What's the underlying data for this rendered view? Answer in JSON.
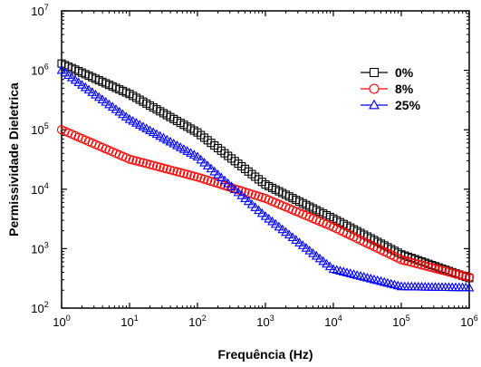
{
  "chart_data": {
    "type": "scatter",
    "xlabel": "Frequência (Hz)",
    "ylabel": "Permissividade Dieletrica",
    "x_scale": "log",
    "y_scale": "log",
    "xlim": [
      1,
      1000000
    ],
    "ylim": [
      100,
      10000000
    ],
    "x_ticks": [
      {
        "base": "10",
        "exp": "0",
        "value": 1
      },
      {
        "base": "10",
        "exp": "1",
        "value": 10
      },
      {
        "base": "10",
        "exp": "2",
        "value": 100
      },
      {
        "base": "10",
        "exp": "3",
        "value": 1000
      },
      {
        "base": "10",
        "exp": "4",
        "value": 10000
      },
      {
        "base": "10",
        "exp": "5",
        "value": 100000
      },
      {
        "base": "10",
        "exp": "6",
        "value": 1000000
      }
    ],
    "y_ticks": [
      {
        "base": "10",
        "exp": "2",
        "value": 100
      },
      {
        "base": "10",
        "exp": "3",
        "value": 1000
      },
      {
        "base": "10",
        "exp": "4",
        "value": 10000
      },
      {
        "base": "10",
        "exp": "5",
        "value": 100000
      },
      {
        "base": "10",
        "exp": "6",
        "value": 1000000
      },
      {
        "base": "10",
        "exp": "7",
        "value": 10000000
      }
    ],
    "legend_position": "top-right",
    "grid": false,
    "series": [
      {
        "name": "0%",
        "marker": "square",
        "color": "#000000",
        "x": [
          1,
          10,
          100,
          1000,
          10000,
          100000,
          1000000
        ],
        "y": [
          1300000,
          400000,
          90000,
          12000,
          3200,
          800,
          320
        ]
      },
      {
        "name": "8%",
        "marker": "circle",
        "color": "#ff0000",
        "x": [
          1,
          10,
          100,
          1000,
          10000,
          100000,
          1000000
        ],
        "y": [
          100000,
          32000,
          16000,
          7000,
          2300,
          650,
          330
        ]
      },
      {
        "name": "25%",
        "marker": "triangle",
        "color": "#0000ff",
        "x": [
          1,
          10,
          100,
          1000,
          10000,
          100000,
          1000000
        ],
        "y": [
          1000000,
          150000,
          35000,
          3500,
          450,
          230,
          220
        ]
      }
    ]
  }
}
